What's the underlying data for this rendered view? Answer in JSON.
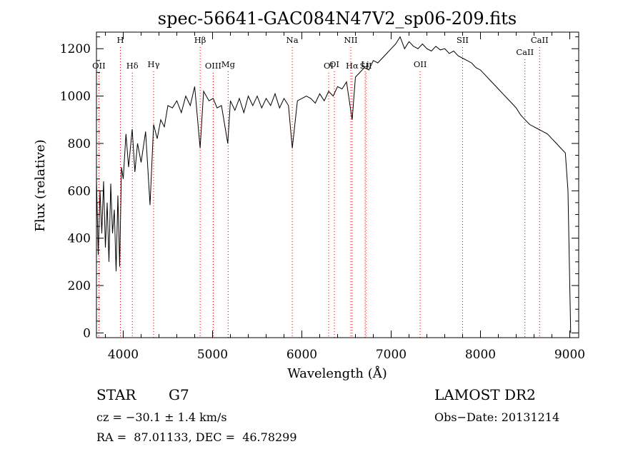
{
  "chart_data": {
    "type": "line",
    "title": "spec-56641-GAC084N47V2_sp06-209.fits",
    "xlabel": "Wavelength (Å)",
    "ylabel": "Flux (relative)",
    "xlim": [
      3700,
      9100
    ],
    "ylim": [
      -20,
      1270
    ],
    "xticks": [
      4000,
      5000,
      6000,
      7000,
      8000,
      9000
    ],
    "yticks": [
      0,
      200,
      400,
      600,
      800,
      1000,
      1200
    ],
    "grid": false,
    "series": [
      {
        "x": [
          3700,
          3720,
          3740,
          3760,
          3780,
          3800,
          3820,
          3840,
          3860,
          3880,
          3900,
          3920,
          3940,
          3960,
          3980,
          4000,
          4030,
          4060,
          4100,
          4130,
          4160,
          4200,
          4250,
          4300,
          4340,
          4380,
          4420,
          4460,
          4500,
          4550,
          4600,
          4650,
          4700,
          4750,
          4800,
          4861,
          4900,
          4960,
          5007,
          5050,
          5100,
          5170,
          5200,
          5250,
          5300,
          5350,
          5400,
          5450,
          5500,
          5550,
          5600,
          5650,
          5700,
          5750,
          5800,
          5850,
          5893,
          5950,
          6000,
          6050,
          6100,
          6150,
          6200,
          6250,
          6300,
          6350,
          6400,
          6450,
          6500,
          6563,
          6600,
          6650,
          6700,
          6750,
          6800,
          6850,
          6900,
          6950,
          7000,
          7050,
          7100,
          7150,
          7200,
          7250,
          7300,
          7350,
          7400,
          7450,
          7500,
          7550,
          7600,
          7650,
          7700,
          7750,
          7800,
          7850,
          7900,
          7950,
          8000,
          8050,
          8100,
          8150,
          8200,
          8250,
          8300,
          8350,
          8400,
          8450,
          8500,
          8550,
          8600,
          8650,
          8700,
          8750,
          8800,
          8850,
          8900,
          8950,
          8980,
          9000,
          9010
        ],
        "y": [
          650,
          330,
          600,
          420,
          640,
          360,
          550,
          300,
          630,
          420,
          520,
          260,
          580,
          280,
          700,
          650,
          840,
          700,
          860,
          680,
          800,
          720,
          850,
          540,
          880,
          820,
          900,
          870,
          960,
          950,
          980,
          930,
          1000,
          960,
          1040,
          780,
          1020,
          980,
          990,
          950,
          960,
          800,
          980,
          940,
          990,
          930,
          1000,
          960,
          1000,
          950,
          990,
          960,
          1010,
          950,
          990,
          960,
          780,
          980,
          990,
          1000,
          990,
          970,
          1010,
          980,
          1020,
          1000,
          1040,
          1030,
          1060,
          900,
          1080,
          1100,
          1120,
          1110,
          1150,
          1140,
          1160,
          1180,
          1200,
          1220,
          1250,
          1200,
          1230,
          1210,
          1200,
          1220,
          1200,
          1190,
          1210,
          1195,
          1200,
          1180,
          1190,
          1170,
          1160,
          1150,
          1140,
          1120,
          1110,
          1090,
          1070,
          1050,
          1030,
          1010,
          990,
          970,
          950,
          920,
          900,
          880,
          870,
          860,
          850,
          840,
          820,
          800,
          780,
          760,
          600,
          200,
          0
        ]
      }
    ],
    "line_ids": [
      {
        "label": "OII",
        "x": 3727,
        "row": 3
      },
      {
        "label": "H",
        "x": 3968,
        "row": 0
      },
      {
        "label": "Hδ",
        "x": 4102,
        "row": 3
      },
      {
        "label": "Hγ",
        "x": 4340,
        "row": 2
      },
      {
        "label": "Hβ",
        "x": 4861,
        "row": 0
      },
      {
        "label": "OIII",
        "x": 5007,
        "row": 3
      },
      {
        "label": "Mg",
        "x": 5175,
        "row": 2
      },
      {
        "label": "Na",
        "x": 5893,
        "row": 0
      },
      {
        "label": "OI",
        "x": 6300,
        "row": 3
      },
      {
        "label": "OI",
        "x": 6364,
        "row": 2
      },
      {
        "label": "NII",
        "x": 6548,
        "row": 0
      },
      {
        "label": "Hα",
        "x": 6563,
        "row": 3
      },
      {
        "label": "SII",
        "x": 6717,
        "row": 3
      },
      {
        "label": "Li",
        "x": 6708,
        "row": 2
      },
      {
        "label": "OII",
        "x": 7325,
        "row": 2
      },
      {
        "label": "SII",
        "x": 7800,
        "row": 0
      },
      {
        "label": "CaII",
        "x": 8498,
        "row": 1
      },
      {
        "label": "CaII",
        "x": 8662,
        "row": 0
      }
    ]
  },
  "info": {
    "object_class": "STAR",
    "subclass": "G7",
    "release": "LAMOST DR2",
    "cz": "cz = −30.1 ± 1.4 km/s",
    "obs_date": "Obs−Date: 20131214",
    "coords": "RA =  87.01133, DEC =  46.78299"
  }
}
